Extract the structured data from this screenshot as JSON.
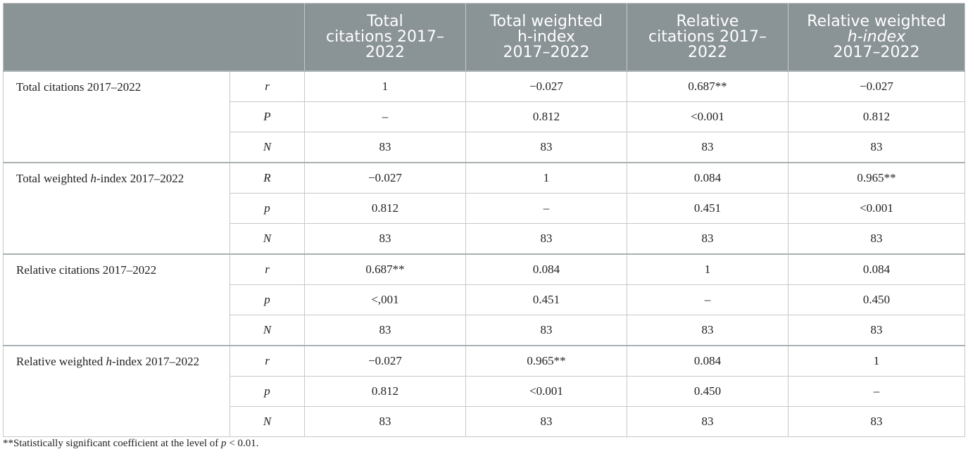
{
  "header": {
    "columns": [
      {
        "lines": [
          "Total",
          "citations 2017–",
          "2022"
        ]
      },
      {
        "lines": [
          "Total weighted",
          "h-index",
          "2017–2022"
        ]
      },
      {
        "lines": [
          "Relative",
          "citations 2017–",
          "2022"
        ]
      },
      {
        "lines": [
          "Relative weighted",
          "h-index",
          "2017–2022"
        ]
      }
    ]
  },
  "groups": [
    {
      "label_before": "Total citations 2017–2022",
      "label_italic": "",
      "label_after": "",
      "rows": [
        {
          "stat": "r",
          "values": [
            "1",
            "−0.027",
            "0.687**",
            "−0.027"
          ]
        },
        {
          "stat": "P",
          "values": [
            "–",
            "0.812",
            "<0.001",
            "0.812"
          ]
        },
        {
          "stat": "N",
          "values": [
            "83",
            "83",
            "83",
            "83"
          ]
        }
      ]
    },
    {
      "label_before": "Total weighted ",
      "label_italic": "h",
      "label_after": "-index 2017–2022",
      "rows": [
        {
          "stat": "R",
          "values": [
            "−0.027",
            "1",
            "0.084",
            "0.965**"
          ]
        },
        {
          "stat": "p",
          "values": [
            "0.812",
            "–",
            "0.451",
            "<0.001"
          ]
        },
        {
          "stat": "N",
          "values": [
            "83",
            "83",
            "83",
            "83"
          ]
        }
      ]
    },
    {
      "label_before": "Relative citations 2017–2022",
      "label_italic": "",
      "label_after": "",
      "rows": [
        {
          "stat": "r",
          "values": [
            "0.687**",
            "0.084",
            "1",
            "0.084"
          ]
        },
        {
          "stat": "p",
          "values": [
            "<,001",
            "0.451",
            "–",
            "0.450"
          ]
        },
        {
          "stat": "N",
          "values": [
            "83",
            "83",
            "83",
            "83"
          ]
        }
      ]
    },
    {
      "label_before": "Relative weighted ",
      "label_italic": "h",
      "label_after": "-index 2017–2022",
      "rows": [
        {
          "stat": "r",
          "values": [
            "−0.027",
            "0.965**",
            "0.084",
            "1"
          ]
        },
        {
          "stat": "p",
          "values": [
            "0.812",
            "<0.001",
            "0.450",
            "–"
          ]
        },
        {
          "stat": "N",
          "values": [
            "83",
            "83",
            "83",
            "83"
          ]
        }
      ]
    }
  ],
  "footnote": {
    "before": "**Statistically significant coefficient at the level of ",
    "italic": "p",
    "after": " < 0.01."
  }
}
